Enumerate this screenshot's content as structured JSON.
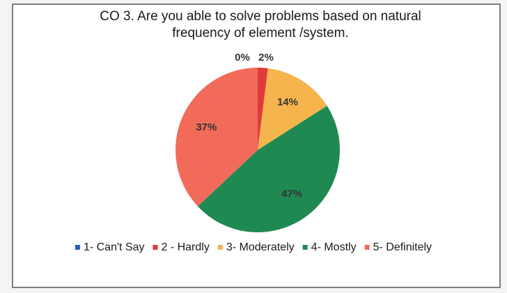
{
  "chart_data": {
    "type": "pie",
    "title": "CO 3. Are you able to solve problems based on natural frequency of element /system.",
    "categories": [
      "1- Can't Say",
      "2 - Hardly",
      "3- Moderately",
      "4- Mostly",
      "5- Definitely"
    ],
    "values": [
      0,
      2,
      14,
      47,
      37
    ],
    "value_labels": [
      "0%",
      "2%",
      "14%",
      "47%",
      "37%"
    ],
    "colors": [
      "#2e5fb5",
      "#e03a3a",
      "#f5b44c",
      "#1e8a52",
      "#f26b5a"
    ],
    "legend": "bottom"
  }
}
